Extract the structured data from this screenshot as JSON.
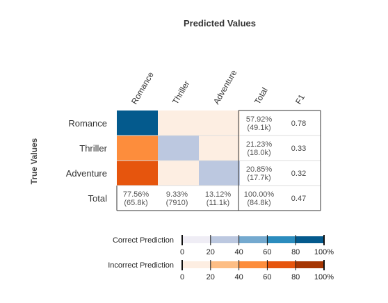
{
  "chart_data": {
    "type": "heatmap",
    "title": "Predicted Values",
    "ylabel": "True Values",
    "categories": [
      "Romance",
      "Thriller",
      "Adventure"
    ],
    "column_labels": [
      "Romance",
      "Thriller",
      "Adventure",
      "Total",
      "F1"
    ],
    "row_labels": [
      "Romance",
      "Thriller",
      "Adventure",
      "Total"
    ],
    "cells": [
      [
        {
          "kind": "correct",
          "level": 100
        },
        {
          "kind": "incorrect",
          "level": 5
        },
        {
          "kind": "incorrect",
          "level": 5
        }
      ],
      [
        {
          "kind": "incorrect",
          "level": 60
        },
        {
          "kind": "correct",
          "level": 22
        },
        {
          "kind": "incorrect",
          "level": 5
        }
      ],
      [
        {
          "kind": "incorrect",
          "level": 80
        },
        {
          "kind": "incorrect",
          "level": 5
        },
        {
          "kind": "correct",
          "level": 22
        }
      ]
    ],
    "row_totals": [
      {
        "pct": "57.92%",
        "count": "(49.1k)"
      },
      {
        "pct": "21.23%",
        "count": "(18.0k)"
      },
      {
        "pct": "20.85%",
        "count": "(17.7k)"
      }
    ],
    "f1": [
      "0.78",
      "0.33",
      "0.32"
    ],
    "col_totals": [
      {
        "pct": "77.56%",
        "count": "(65.8k)"
      },
      {
        "pct": "9.33%",
        "count": "(7910)"
      },
      {
        "pct": "13.12%",
        "count": "(11.1k)"
      },
      {
        "pct": "100.00%",
        "count": "(84.8k)"
      }
    ],
    "f1_total": "0.47",
    "legends": [
      {
        "name": "Correct Prediction",
        "colors": [
          "#efedf5",
          "#bcc8e0",
          "#74a9cf",
          "#2b8cbe",
          "#045a8d"
        ],
        "ticks": [
          "0",
          "20",
          "40",
          "60",
          "80",
          "100%"
        ]
      },
      {
        "name": "Incorrect Prediction",
        "colors": [
          "#fdeee2",
          "#fdbe85",
          "#fd8d3c",
          "#e6550d",
          "#a63603"
        ],
        "ticks": [
          "0",
          "20",
          "40",
          "60",
          "80",
          "100%"
        ]
      }
    ],
    "colors": {
      "highlight_bg": "#fdeee2",
      "border": "#333333",
      "row_divider": "#dddddd"
    }
  }
}
